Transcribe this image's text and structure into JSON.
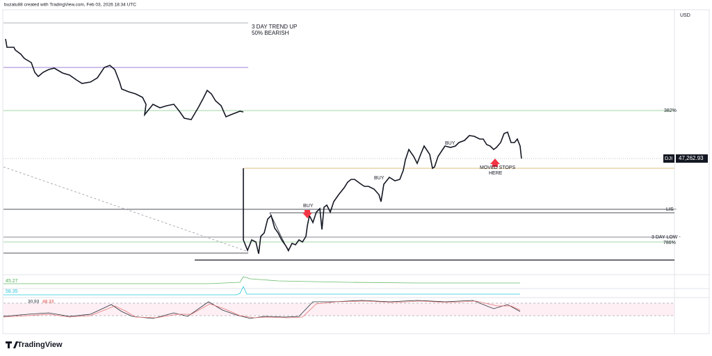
{
  "header": {
    "title": "buzatu88 created with TradingView.com, Feb 03, 2026 18:34 UTC",
    "currency": "USD"
  },
  "annotations": {
    "trend": "3 DAY TREND UP",
    "bearish": "50% BEARISH",
    "buy1": "BUY",
    "buy2": "BUY",
    "buy3": "BUY",
    "moved1": "MOVED STOPS",
    "moved2": "HERE"
  },
  "levels": {
    "fib382": "382%",
    "lis": "LIS -",
    "low": "3 DAY LOW -",
    "fib786": "786%"
  },
  "price": {
    "symbol": "DJI",
    "last": "47,262.93"
  },
  "indicators": {
    "ind1": "45.27",
    "ind2": "58.35",
    "stoch_k": "30.93",
    "stoch_d": "48.33"
  },
  "footer": {
    "logo": "TradingView"
  }
}
